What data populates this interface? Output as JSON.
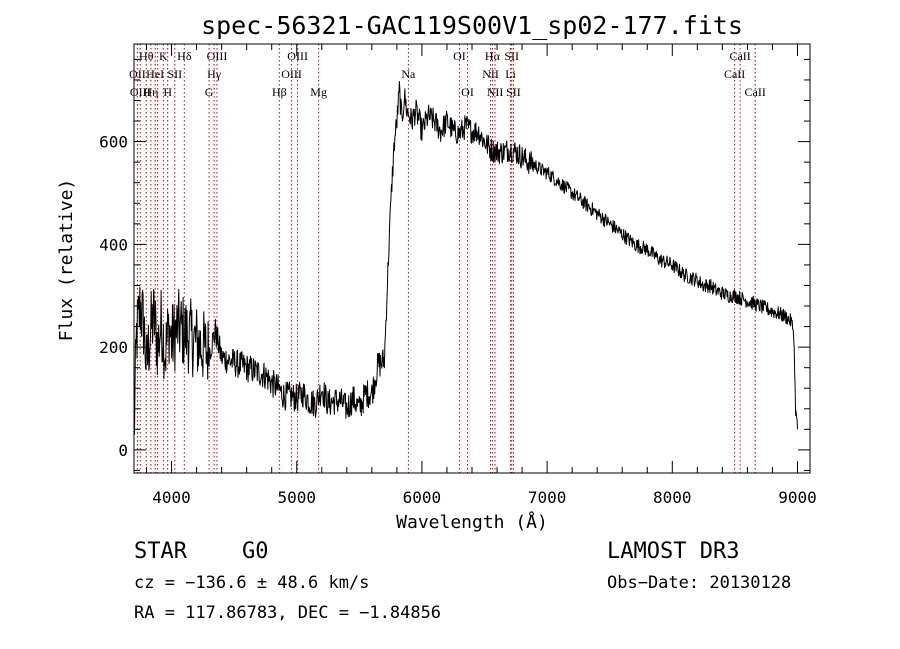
{
  "chart_data": {
    "type": "line",
    "title": "spec-56321-GAC119S00V1_sp02-177.fits",
    "xlabel": "Wavelength (Å)",
    "ylabel": "Flux (relative)",
    "xlim": [
      3700,
      9100
    ],
    "ylim": [
      -45,
      790
    ],
    "xticks": [
      4000,
      5000,
      6000,
      7000,
      8000,
      9000
    ],
    "xtick_labels": [
      "4000",
      "5000",
      "6000",
      "7000",
      "8000",
      "9000"
    ],
    "yticks": [
      0,
      200,
      400,
      600
    ],
    "ytick_labels": [
      "0",
      "200",
      "400",
      "600"
    ],
    "grid": false,
    "series": [
      {
        "name": "flux",
        "x": [
          3700,
          3720,
          3750,
          3780,
          3800,
          3830,
          3860,
          3890,
          3920,
          3950,
          3980,
          4000,
          4050,
          4100,
          4150,
          4200,
          4250,
          4300,
          4350,
          4400,
          4450,
          4500,
          4550,
          4600,
          4650,
          4700,
          4750,
          4800,
          4850,
          4900,
          4950,
          5000,
          5050,
          5100,
          5150,
          5200,
          5250,
          5300,
          5350,
          5400,
          5450,
          5500,
          5550,
          5600,
          5650,
          5680,
          5700,
          5720,
          5740,
          5760,
          5780,
          5800,
          5820,
          5840,
          5860,
          5880,
          5900,
          5920,
          5950,
          5980,
          6000,
          6050,
          6100,
          6150,
          6200,
          6250,
          6300,
          6350,
          6400,
          6450,
          6500,
          6550,
          6600,
          6650,
          6700,
          6750,
          6800,
          6850,
          6900,
          6950,
          7000,
          7050,
          7100,
          7150,
          7200,
          7250,
          7300,
          7350,
          7400,
          7450,
          7500,
          7550,
          7600,
          7650,
          7700,
          7750,
          7800,
          7850,
          7900,
          7950,
          8000,
          8050,
          8100,
          8150,
          8200,
          8250,
          8300,
          8350,
          8400,
          8450,
          8500,
          8550,
          8600,
          8650,
          8700,
          8750,
          8800,
          8850,
          8900,
          8950,
          8970,
          8985,
          9000
        ],
        "y": [
          20,
          220,
          280,
          240,
          160,
          230,
          260,
          200,
          250,
          190,
          240,
          210,
          240,
          230,
          220,
          210,
          200,
          190,
          230,
          180,
          175,
          170,
          165,
          160,
          155,
          150,
          145,
          130,
          120,
          105,
          105,
          100,
          110,
          95,
          90,
          120,
          90,
          95,
          95,
          80,
          100,
          80,
          110,
          110,
          165,
          170,
          175,
          300,
          420,
          520,
          600,
          640,
          700,
          640,
          690,
          660,
          650,
          640,
          660,
          640,
          620,
          650,
          640,
          620,
          640,
          620,
          615,
          630,
          620,
          620,
          600,
          585,
          580,
          580,
          585,
          580,
          570,
          560,
          555,
          545,
          540,
          530,
          520,
          510,
          500,
          490,
          480,
          470,
          460,
          450,
          440,
          430,
          420,
          410,
          400,
          395,
          390,
          380,
          370,
          365,
          360,
          350,
          340,
          335,
          330,
          320,
          320,
          310,
          305,
          300,
          300,
          295,
          290,
          285,
          280,
          275,
          270,
          265,
          260,
          250,
          230,
          80,
          40
        ]
      }
    ],
    "line_markers": [
      {
        "w": 3727,
        "label": "OII",
        "row": 1
      },
      {
        "w": 3750,
        "label": "OIII",
        "row": 2
      },
      {
        "w": 3798,
        "label": "Hθ",
        "row": 0
      },
      {
        "w": 3835,
        "label": "Hη",
        "row": 2
      },
      {
        "w": 3869,
        "label": "HeI",
        "row": 1
      },
      {
        "w": 3889,
        "label": "",
        "row": 1
      },
      {
        "w": 3934,
        "label": "K",
        "row": 0
      },
      {
        "w": 3969,
        "label": "H",
        "row": 2
      },
      {
        "w": 4026,
        "label": "SII",
        "row": 1
      },
      {
        "w": 4102,
        "label": "Hδ",
        "row": 0
      },
      {
        "w": 4300,
        "label": "G",
        "row": 2
      },
      {
        "w": 4340,
        "label": "Hγ",
        "row": 1
      },
      {
        "w": 4363,
        "label": "OIII",
        "row": 0
      },
      {
        "w": 4861,
        "label": "Hβ",
        "row": 2
      },
      {
        "w": 4959,
        "label": "OIII",
        "row": 1
      },
      {
        "w": 5007,
        "label": "OIII",
        "row": 0
      },
      {
        "w": 5175,
        "label": "Mg",
        "row": 2
      },
      {
        "w": 5892,
        "label": "Na",
        "row": 1
      },
      {
        "w": 6300,
        "label": "OI",
        "row": 0
      },
      {
        "w": 6364,
        "label": "OI",
        "row": 2
      },
      {
        "w": 6548,
        "label": "NII",
        "row": 1
      },
      {
        "w": 6563,
        "label": "Hα",
        "row": 0
      },
      {
        "w": 6584,
        "label": "NII",
        "row": 2
      },
      {
        "w": 6708,
        "label": "Li",
        "row": 1
      },
      {
        "w": 6717,
        "label": "SII",
        "row": 0
      },
      {
        "w": 6731,
        "label": "SII",
        "row": 2
      },
      {
        "w": 8498,
        "label": "CaII",
        "row": 1
      },
      {
        "w": 8542,
        "label": "CaII",
        "row": 0
      },
      {
        "w": 8662,
        "label": "CaII",
        "row": 2
      }
    ],
    "marker_color": "#cc0000",
    "line_color": "#000000"
  },
  "info": {
    "class": "STAR",
    "subclass": "G0",
    "survey": "LAMOST DR3",
    "cz": "cz = −136.6 ± 48.6 km/s",
    "obs_date": "Obs−Date: 20130128",
    "coords": "RA = 117.86783, DEC =  −1.84856"
  }
}
